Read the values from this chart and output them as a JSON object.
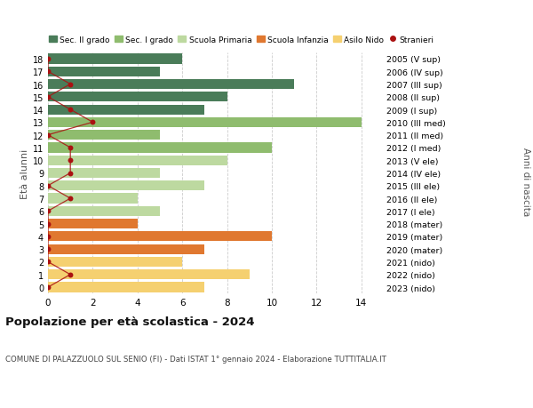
{
  "ages": [
    18,
    17,
    16,
    15,
    14,
    13,
    12,
    11,
    10,
    9,
    8,
    7,
    6,
    5,
    4,
    3,
    2,
    1,
    0
  ],
  "right_labels": [
    "2005 (V sup)",
    "2006 (IV sup)",
    "2007 (III sup)",
    "2008 (II sup)",
    "2009 (I sup)",
    "2010 (III med)",
    "2011 (II med)",
    "2012 (I med)",
    "2013 (V ele)",
    "2014 (IV ele)",
    "2015 (III ele)",
    "2016 (II ele)",
    "2017 (I ele)",
    "2018 (mater)",
    "2019 (mater)",
    "2020 (mater)",
    "2021 (nido)",
    "2022 (nido)",
    "2023 (nido)"
  ],
  "bar_values": [
    6,
    5,
    11,
    8,
    7,
    14,
    5,
    10,
    8,
    5,
    7,
    4,
    5,
    4,
    10,
    7,
    6,
    9,
    7
  ],
  "bar_colors": [
    "#4a7c59",
    "#4a7c59",
    "#4a7c59",
    "#4a7c59",
    "#4a7c59",
    "#8fbc6e",
    "#8fbc6e",
    "#8fbc6e",
    "#bdd9a0",
    "#bdd9a0",
    "#bdd9a0",
    "#bdd9a0",
    "#bdd9a0",
    "#e07830",
    "#e07830",
    "#e07830",
    "#f5d070",
    "#f5d070",
    "#f5d070"
  ],
  "stranieri_values": [
    0,
    0,
    1,
    0,
    1,
    2,
    0,
    1,
    1,
    1,
    0,
    1,
    0,
    0,
    0,
    0,
    0,
    1,
    0
  ],
  "stranieri_color": "#aa1111",
  "legend_labels": [
    "Sec. II grado",
    "Sec. I grado",
    "Scuola Primaria",
    "Scuola Infanzia",
    "Asilo Nido",
    "Stranieri"
  ],
  "legend_colors": [
    "#4a7c59",
    "#8fbc6e",
    "#bdd9a0",
    "#e07830",
    "#f5d070",
    "#aa1111"
  ],
  "ylabel_left": "Età alunni",
  "ylabel_right": "Anni di nascita",
  "title": "Popolazione per età scolastica - 2024",
  "subtitle": "COMUNE DI PALAZZUOLO SUL SENIO (FI) - Dati ISTAT 1° gennaio 2024 - Elaborazione TUTTITALIA.IT",
  "xlim": [
    0,
    15
  ],
  "xticks": [
    0,
    2,
    4,
    6,
    8,
    10,
    12,
    14
  ],
  "background_color": "#ffffff",
  "grid_color": "#cccccc"
}
